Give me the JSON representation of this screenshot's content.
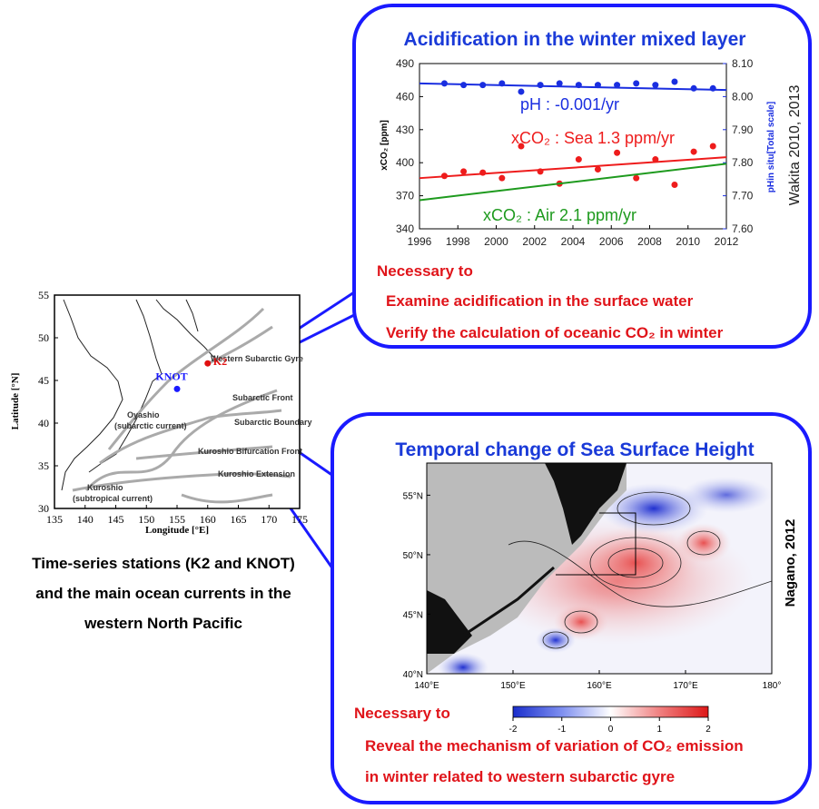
{
  "chart_data": {
    "type": "scatter",
    "title": "Acidification in the winter mixed layer",
    "x_label": null,
    "y_label": "xCO₂ [ppm]",
    "y2_label": "pHin situ[Total scale]",
    "xlim": [
      1996,
      2012
    ],
    "xticks": [
      1996,
      1998,
      2000,
      2002,
      2004,
      2006,
      2008,
      2010,
      2012
    ],
    "ylim": [
      340,
      490
    ],
    "yticks": [
      340,
      370,
      400,
      430,
      460,
      490
    ],
    "y2lim": [
      7.6,
      8.1
    ],
    "y2ticks": [
      {
        "value": 7.6,
        "label": "7.60"
      },
      {
        "value": 7.7,
        "label": "7.70"
      },
      {
        "value": 7.8,
        "label": "7.80"
      },
      {
        "value": 7.9,
        "label": "7.90"
      },
      {
        "value": 8.0,
        "label": "8.00"
      },
      {
        "value": 8.1,
        "label": "8.10"
      }
    ],
    "series": [
      {
        "name": "pH : -0.001/yr",
        "color": "#1a2ee0",
        "axis": "y2",
        "x": [
          1997.3,
          1998.3,
          1999.3,
          2000.3,
          2001.3,
          2002.3,
          2003.3,
          2004.3,
          2005.3,
          2006.3,
          2007.3,
          2008.3,
          2009.3,
          2010.3,
          2011.3
        ],
        "values": [
          8.04,
          8.035,
          8.035,
          8.04,
          8.015,
          8.035,
          8.04,
          8.035,
          8.035,
          8.035,
          8.04,
          8.035,
          8.045,
          8.025,
          8.025
        ],
        "trend": {
          "x": [
            1996,
            2012
          ],
          "values": [
            8.04,
            8.02
          ]
        }
      },
      {
        "name": "xCO₂ : Sea 1.3 ppm/yr",
        "color": "#ee1c1c",
        "x": [
          1997.3,
          1998.3,
          1999.3,
          2000.3,
          2001.3,
          2002.3,
          2003.3,
          2004.3,
          2005.3,
          2006.3,
          2007.3,
          2008.3,
          2009.3,
          2010.3,
          2011.3
        ],
        "values": [
          388,
          392,
          391,
          386,
          415,
          392,
          381,
          403,
          394,
          409,
          386,
          403,
          380,
          410,
          415
        ],
        "trend": {
          "x": [
            1996,
            2012
          ],
          "values": [
            386,
            405
          ]
        }
      },
      {
        "name": "xCO₂ : Air 2.1 ppm/yr",
        "color": "#1e9a1e",
        "trend": {
          "x": [
            1996,
            2012
          ],
          "values": [
            366,
            399
          ]
        }
      }
    ]
  },
  "acid_panel": {
    "citation": "Wakita 2010, 2013",
    "notes": [
      "Necessary to",
      "Examine acidification in the surface water",
      "Verify the calculation of oceanic CO₂ in winter"
    ]
  },
  "map": {
    "x_label": "Longitude [°E]",
    "y_label": "Latitude [°N]",
    "xlim": [
      135,
      175
    ],
    "xticks": [
      135,
      140,
      145,
      150,
      155,
      160,
      165,
      170,
      175
    ],
    "ylim": [
      30,
      55
    ],
    "yticks": [
      30,
      35,
      40,
      45,
      50,
      55
    ],
    "stations": [
      {
        "name": "K2",
        "lon": 160,
        "lat": 47,
        "color": "#e01010"
      },
      {
        "name": "KNOT",
        "lon": 155,
        "lat": 44,
        "color": "#1a1aff"
      }
    ],
    "currents": [
      "Western Subarctic Gyre",
      "Subarctic Front",
      "Subarctic Boundary",
      "Kuroshio Bifurcation Front",
      "Kuroshio Extension",
      "Oyashio",
      "(subarctic current)",
      "Kuroshio",
      "(subtropical current)"
    ],
    "caption": [
      "Time-series stations (K2 and KNOT)",
      "and the main ocean currents in the",
      "western North Pacific"
    ]
  },
  "ssh_panel": {
    "title": "Temporal change of Sea Surface Height",
    "citation": "Nagano, 2012",
    "xlim": [
      140,
      180
    ],
    "xticks": [
      {
        "value": 140,
        "label": "140°E"
      },
      {
        "value": 150,
        "label": "150°E"
      },
      {
        "value": 160,
        "label": "160°E"
      },
      {
        "value": 170,
        "label": "170°E"
      },
      {
        "value": 180,
        "label": "180°"
      }
    ],
    "ylim": [
      40,
      57.7
    ],
    "yticks": [
      {
        "value": 40,
        "label": "40°N"
      },
      {
        "value": 45,
        "label": "45°N"
      },
      {
        "value": 50,
        "label": "50°N"
      },
      {
        "value": 55,
        "label": "55°N"
      }
    ],
    "colorbar": {
      "lim": [
        -2,
        2
      ],
      "ticks": [
        -2,
        -1,
        0,
        1,
        2
      ]
    },
    "notes": [
      "Necessary to",
      "Reveal the mechanism of variation of CO₂ emission",
      "in winter related to western subarctic gyre"
    ]
  }
}
